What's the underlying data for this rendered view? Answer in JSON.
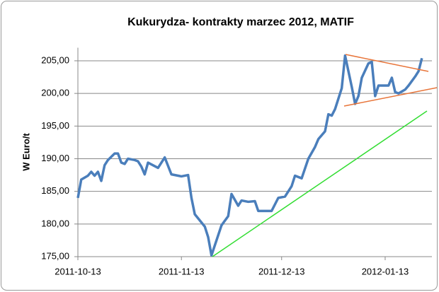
{
  "chart_data": {
    "type": "line",
    "title": "Kukurydza- kontrakty marzec 2012, MATIF",
    "y_label": "W Euro/t",
    "x": [
      "2011-10-13",
      "2011-10-14",
      "2011-10-16",
      "2011-10-17",
      "2011-10-18",
      "2011-10-19",
      "2011-10-20",
      "2011-10-21",
      "2011-10-22",
      "2011-10-24",
      "2011-10-25",
      "2011-10-26",
      "2011-10-27",
      "2011-10-28",
      "2011-10-30",
      "2011-10-31",
      "2011-11-01",
      "2011-11-02",
      "2011-11-03",
      "2011-11-06",
      "2011-11-08",
      "2011-11-10",
      "2011-11-13",
      "2011-11-15",
      "2011-11-16",
      "2011-11-17",
      "2011-11-20",
      "2011-11-21",
      "2011-11-22",
      "2011-11-25",
      "2011-11-27",
      "2011-11-28",
      "2011-11-30",
      "2011-12-01",
      "2011-12-03",
      "2011-12-05",
      "2011-12-06",
      "2011-12-10",
      "2011-12-12",
      "2011-12-14",
      "2011-12-16",
      "2011-12-17",
      "2011-12-19",
      "2011-12-21",
      "2011-12-23",
      "2011-12-24",
      "2011-12-26",
      "2011-12-27",
      "2011-12-28",
      "2011-12-29",
      "2011-12-31",
      "2012-01-01",
      "2012-01-03",
      "2012-01-04",
      "2012-01-05",
      "2012-01-06",
      "2012-01-08",
      "2012-01-09",
      "2012-01-10",
      "2012-01-11",
      "2012-01-13",
      "2012-01-14",
      "2012-01-15",
      "2012-01-16",
      "2012-01-17",
      "2012-01-19",
      "2012-01-20",
      "2012-01-22",
      "2012-01-23",
      "2012-01-24"
    ],
    "series": [
      {
        "color": "#4a7ebb",
        "values": [
          184.0,
          186.8,
          187.4,
          188.0,
          187.4,
          188.0,
          186.6,
          189.0,
          189.8,
          190.8,
          190.8,
          189.4,
          189.2,
          190.0,
          189.8,
          189.6,
          188.8,
          187.6,
          189.4,
          188.6,
          190.2,
          187.6,
          187.3,
          187.5,
          184.0,
          181.5,
          179.6,
          178.0,
          175.2,
          179.8,
          181.2,
          184.6,
          182.8,
          183.6,
          183.4,
          183.5,
          182.0,
          182.0,
          184.0,
          184.2,
          185.8,
          187.4,
          187.0,
          190.0,
          191.8,
          193.0,
          194.2,
          196.8,
          196.6,
          197.6,
          200.8,
          205.8,
          201.0,
          198.4,
          199.6,
          202.4,
          204.6,
          204.8,
          199.6,
          201.2,
          201.2,
          201.2,
          202.4,
          200.2,
          200.0,
          200.6,
          201.2,
          202.6,
          203.4,
          205.4
        ]
      }
    ],
    "xlim": [
      "2011-10-13",
      "2012-01-27"
    ],
    "xticks": [
      "2011-10-13",
      "2011-11-13",
      "2011-12-13",
      "2012-01-13"
    ],
    "ylim": [
      175,
      207
    ],
    "yticks": [
      {
        "value": 175,
        "label": "175,00"
      },
      {
        "value": 180,
        "label": "180,00"
      },
      {
        "value": 185,
        "label": "185,00"
      },
      {
        "value": 190,
        "label": "190,00"
      },
      {
        "value": 195,
        "label": "195,00"
      },
      {
        "value": 200,
        "label": "200,00"
      },
      {
        "value": 205,
        "label": "205,00"
      }
    ],
    "grid": true
  }
}
